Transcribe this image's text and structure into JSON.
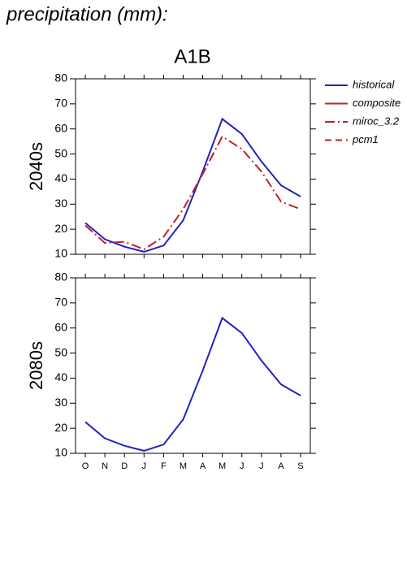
{
  "title": "precipitation (mm):",
  "legend": [
    {
      "name": "historical",
      "color": "#2222bb",
      "dash": "none"
    },
    {
      "name": "composite",
      "color": "#c02222",
      "dash": "none"
    },
    {
      "name": "miroc_3.2",
      "color": "#c02222",
      "dash": "12,4,2,4"
    },
    {
      "name": "pcm1",
      "color": "#c02222",
      "dash": "8,5"
    }
  ],
  "chart_data": [
    {
      "type": "line",
      "title": "A1B",
      "ylabel": "2040s",
      "ylim": [
        10,
        80
      ],
      "yticks": [
        10,
        20,
        30,
        40,
        50,
        60,
        70,
        80
      ],
      "series": [
        {
          "name": "historical",
          "color": "#2222bb",
          "dash": "none",
          "values": [
            22.5,
            16,
            13,
            11,
            13.5,
            23.5,
            43,
            64,
            58,
            47,
            37.5,
            33
          ]
        },
        {
          "name": "miroc_3.2",
          "color": "#c02222",
          "dash": "12,4,2,4",
          "values": [
            21.5,
            14.5,
            15,
            12,
            17,
            28,
            42,
            57,
            52,
            43,
            31,
            28
          ]
        }
      ]
    },
    {
      "type": "line",
      "ylabel": "2080s",
      "categories": [
        "O",
        "N",
        "D",
        "J",
        "F",
        "M",
        "A",
        "M",
        "J",
        "J",
        "A",
        "S"
      ],
      "ylim": [
        10,
        80
      ],
      "yticks": [
        10,
        20,
        30,
        40,
        50,
        60,
        70,
        80
      ],
      "series": [
        {
          "name": "historical",
          "color": "#2222bb",
          "dash": "none",
          "values": [
            22.5,
            16,
            13,
            11,
            13.5,
            23.5,
            43,
            64,
            58,
            47,
            37.5,
            33
          ]
        }
      ]
    }
  ]
}
